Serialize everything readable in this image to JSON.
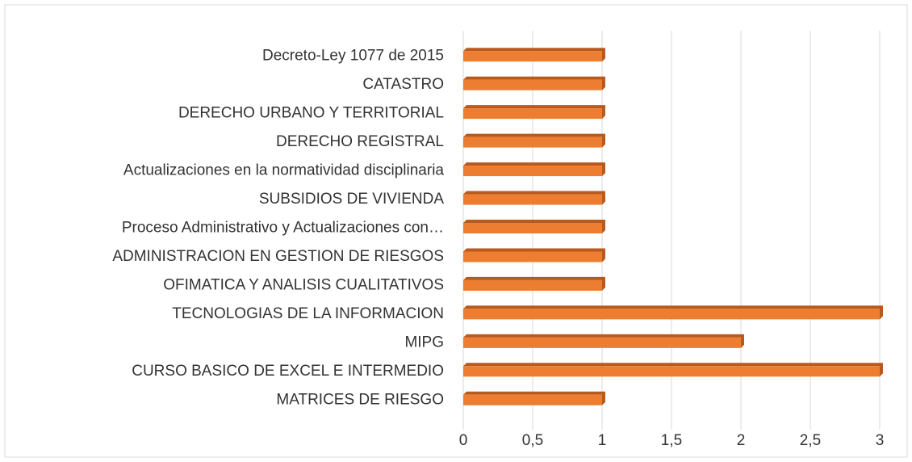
{
  "chart_data": {
    "type": "bar",
    "orientation": "horizontal",
    "categories": [
      "Decreto-Ley 1077 de 2015",
      "CATASTRO",
      "DERECHO URBANO Y TERRITORIAL",
      "DERECHO REGISTRAL",
      "Actualizaciones en la normatividad disciplinaria",
      "SUBSIDIOS DE VIVIENDA",
      "Proceso Administrativo y Actualizaciones con…",
      "ADMINISTRACION EN GESTION DE RIESGOS",
      "OFIMATICA Y ANALISIS CUALITATIVOS",
      "TECNOLOGIAS DE LA INFORMACION",
      "MIPG",
      "CURSO BASICO DE EXCEL E INTERMEDIO",
      "MATRICES DE RIESGO"
    ],
    "values": [
      1,
      1,
      1,
      1,
      1,
      1,
      1,
      1,
      1,
      3,
      2,
      3,
      1
    ],
    "color": "#ed7d31",
    "xlim": [
      0,
      3
    ],
    "xticks": [
      0,
      {
        "value": 0.5,
        "label": "0,5"
      },
      1,
      {
        "value": 1.5,
        "label": "1,5"
      },
      2,
      {
        "value": 2.5,
        "label": "2,5"
      },
      3
    ],
    "grid": true
  }
}
